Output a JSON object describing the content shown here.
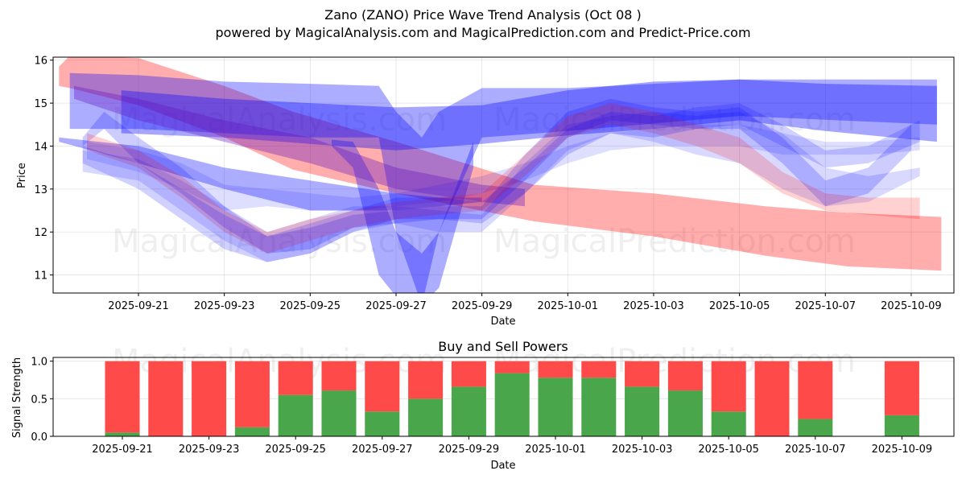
{
  "title": "Zano (ZANO) Price Wave Trend Analysis (Oct 08 )",
  "subtitle": "powered by MagicalAnalysis.com and MagicalPrediction.com and Predict-Price.com",
  "watermarks": [
    "MagicalAnalysis.com",
    "MagicalPrediction.com"
  ],
  "chart_data": [
    {
      "type": "area",
      "title": "",
      "xlabel": "Date",
      "ylabel": "Price",
      "ylim": [
        10.58,
        16.07
      ],
      "xlim": [
        "2025-09-19",
        "2025-10-10"
      ],
      "grid": true,
      "yticks": [
        11,
        12,
        13,
        14,
        15,
        16
      ],
      "xticks": [
        "2025-09-21",
        "2025-09-23",
        "2025-09-25",
        "2025-09-27",
        "2025-09-29",
        "2025-10-01",
        "2025-10-03",
        "2025-10-05",
        "2025-10-07",
        "2025-10-09"
      ],
      "x_origin": "2025-09-21",
      "series": [
        {
          "name": "red-band-main",
          "color": "#ff0000",
          "opacity": 0.32,
          "x": [
            -1.85,
            -1.6,
            0,
            2,
            3.6,
            6,
            9.2,
            12,
            14.6,
            16.5,
            18.7
          ],
          "upper": [
            15.85,
            16.1,
            16.05,
            15.4,
            14.8,
            14.1,
            13.1,
            12.9,
            12.6,
            12.45,
            12.35
          ],
          "lower": [
            15.4,
            15.35,
            14.95,
            14.2,
            13.45,
            12.9,
            12.25,
            11.9,
            11.45,
            11.2,
            11.1
          ]
        },
        {
          "name": "blue-band-wide",
          "color": "#0000ff",
          "opacity": 0.32,
          "x": [
            -1.6,
            0,
            2,
            4,
            5.6,
            6,
            6.6,
            7,
            8,
            10,
            14,
            18.6
          ],
          "upper": [
            15.7,
            15.65,
            15.5,
            15.45,
            15.4,
            14.8,
            14.2,
            14.8,
            15.35,
            15.35,
            15.55,
            15.55
          ],
          "lower": [
            14.4,
            14.4,
            14.3,
            14.2,
            14.2,
            12.0,
            10.3,
            12.0,
            14.2,
            14.35,
            14.7,
            14.5
          ]
        },
        {
          "name": "blue-band-deep-v",
          "color": "#0000ff",
          "opacity": 0.32,
          "x": [
            4.5,
            5.0,
            5.6,
            6.0,
            6.6,
            7.0,
            7.8
          ],
          "upper": [
            14.15,
            14.1,
            13.0,
            12.0,
            11.5,
            12.0,
            14.1
          ],
          "lower": [
            14.0,
            13.5,
            11.0,
            10.5,
            10.3,
            10.7,
            13.5
          ]
        },
        {
          "name": "blue-band-top",
          "color": "#0000ff",
          "opacity": 0.35,
          "x": [
            -0.4,
            2,
            6,
            8,
            10,
            12,
            14,
            16,
            18.6
          ],
          "upper": [
            15.3,
            15.1,
            14.9,
            14.95,
            15.3,
            15.5,
            15.55,
            15.45,
            15.4
          ],
          "lower": [
            14.3,
            14.2,
            13.9,
            14.05,
            14.25,
            14.4,
            14.6,
            14.35,
            14.1
          ]
        },
        {
          "name": "purple-band",
          "color": "#6010c0",
          "opacity": 0.35,
          "x": [
            -1.5,
            0,
            2,
            4,
            6,
            8,
            9
          ],
          "upper": [
            15.4,
            15.1,
            14.6,
            14.2,
            13.5,
            13.1,
            13.0
          ],
          "lower": [
            15.1,
            14.6,
            14.1,
            13.6,
            13.0,
            12.7,
            12.6
          ]
        },
        {
          "name": "blue-band-lower-wide",
          "color": "#0000ff",
          "opacity": 0.32,
          "x": [
            -1.85,
            0,
            2,
            4,
            6,
            7,
            8
          ],
          "upper": [
            14.2,
            14.0,
            13.5,
            13.2,
            12.9,
            12.8,
            12.8
          ],
          "lower": [
            14.1,
            13.6,
            13.0,
            12.5,
            12.5,
            12.6,
            12.7
          ]
        },
        {
          "name": "blue-wave-1",
          "color": "#0000ff",
          "opacity": 0.2,
          "x": [
            -1.3,
            -0.8,
            0,
            1,
            2,
            3,
            4,
            5,
            6,
            7,
            8,
            9,
            10,
            11,
            12,
            13,
            14,
            15,
            16,
            17,
            18
          ],
          "upper": [
            14.2,
            14.8,
            14.2,
            13.5,
            12.6,
            11.9,
            12.1,
            12.4,
            12.5,
            12.6,
            12.6,
            13.8,
            14.8,
            15.1,
            14.9,
            14.8,
            14.9,
            14.2,
            13.2,
            13.5,
            14.5
          ],
          "lower": [
            14.0,
            14.4,
            13.6,
            12.9,
            12.1,
            11.5,
            11.6,
            12.1,
            12.2,
            12.3,
            12.3,
            13.2,
            14.2,
            14.6,
            14.5,
            14.4,
            14.4,
            13.6,
            12.6,
            12.9,
            13.9
          ]
        },
        {
          "name": "blue-wave-2",
          "color": "#0000ff",
          "opacity": 0.15,
          "x": [
            -1.3,
            0,
            1,
            2,
            3,
            4,
            5,
            6,
            7,
            8,
            9,
            10,
            11,
            12,
            13,
            14,
            15,
            16,
            17,
            18.2
          ],
          "upper": [
            13.9,
            13.7,
            13.2,
            12.6,
            12.0,
            12.3,
            12.6,
            12.6,
            12.5,
            12.4,
            13.6,
            14.5,
            14.7,
            14.8,
            14.7,
            14.8,
            14.3,
            13.5,
            13.3,
            13.5
          ],
          "lower": [
            13.4,
            13.2,
            12.5,
            11.8,
            11.3,
            11.5,
            12.0,
            12.2,
            12.0,
            12.0,
            12.9,
            13.9,
            14.3,
            14.1,
            13.8,
            13.6,
            13.0,
            12.6,
            12.7,
            13.3
          ]
        },
        {
          "name": "blue-wave-3",
          "color": "#0000ff",
          "opacity": 0.13,
          "x": [
            -1.2,
            0,
            1,
            2,
            3,
            4,
            5,
            6,
            7,
            8,
            9,
            10,
            11,
            12,
            13,
            14,
            15,
            16,
            17,
            18.2
          ],
          "upper": [
            14.1,
            13.9,
            13.6,
            13.1,
            13.0,
            12.9,
            12.8,
            12.9,
            13.1,
            13.3,
            13.6,
            14.0,
            14.3,
            14.4,
            14.5,
            14.5,
            14.3,
            14.1,
            14.1,
            14.2
          ],
          "lower": [
            13.7,
            13.4,
            13.0,
            12.5,
            12.6,
            12.5,
            12.5,
            12.6,
            12.7,
            12.9,
            13.2,
            13.6,
            13.9,
            14.0,
            14.0,
            14.0,
            13.8,
            13.8,
            13.8,
            13.9
          ]
        },
        {
          "name": "red-wave-1",
          "color": "#ff0000",
          "opacity": 0.18,
          "x": [
            -1.2,
            0,
            1,
            2,
            3,
            4,
            5,
            6,
            7,
            8,
            9,
            10,
            11,
            12,
            13,
            14,
            15,
            16,
            17,
            18.2
          ],
          "upper": [
            14.3,
            13.9,
            13.3,
            12.5,
            12.0,
            12.3,
            12.5,
            12.7,
            12.8,
            12.9,
            13.8,
            14.7,
            15.0,
            14.8,
            14.5,
            14.2,
            13.4,
            12.9,
            12.8,
            12.8
          ],
          "lower": [
            13.9,
            13.5,
            12.8,
            12.0,
            11.5,
            11.8,
            12.1,
            12.3,
            12.4,
            12.5,
            13.3,
            14.2,
            14.5,
            14.3,
            14.0,
            13.6,
            12.9,
            12.5,
            12.4,
            12.3
          ]
        },
        {
          "name": "blue-wave-4",
          "color": "#0000ff",
          "opacity": 0.18,
          "x": [
            -1.3,
            0,
            1,
            2,
            3,
            4,
            5,
            6,
            7,
            8,
            9,
            10,
            11,
            12,
            13,
            14,
            15,
            16,
            17,
            18.2
          ],
          "upper": [
            14.0,
            13.6,
            13.0,
            12.4,
            11.9,
            12.2,
            12.5,
            12.8,
            12.8,
            12.7,
            13.5,
            14.4,
            14.8,
            14.7,
            14.9,
            15.0,
            14.5,
            13.9,
            14.0,
            14.6
          ],
          "lower": [
            13.6,
            13.0,
            12.3,
            11.6,
            11.3,
            11.5,
            12.0,
            12.3,
            12.3,
            12.2,
            12.9,
            13.8,
            14.3,
            14.2,
            14.4,
            14.5,
            14.0,
            13.5,
            13.6,
            14.1
          ]
        }
      ]
    },
    {
      "type": "bar",
      "title": "Buy and Sell Powers",
      "xlabel": "Date",
      "ylabel": "Signal Strength",
      "ylim": [
        0,
        1.05
      ],
      "yticks": [
        0.0,
        0.5,
        1.0
      ],
      "ytick_labels": [
        "0.0",
        "0.5",
        "1.0"
      ],
      "xticks": [
        "2025-09-21",
        "2025-09-23",
        "2025-09-25",
        "2025-09-27",
        "2025-09-29",
        "2025-10-01",
        "2025-10-03",
        "2025-10-05",
        "2025-10-07",
        "2025-10-09"
      ],
      "x_origin": "2025-09-21",
      "series": [
        {
          "name": "Buy",
          "color": "#4aa64a"
        },
        {
          "name": "Sell",
          "color": "#ff4a4a"
        }
      ],
      "categories": [
        "2025-09-21",
        "2025-09-22",
        "2025-09-23",
        "2025-09-24",
        "2025-09-25",
        "2025-09-26",
        "2025-09-27",
        "2025-09-28",
        "2025-09-29",
        "2025-09-30",
        "2025-10-01",
        "2025-10-02",
        "2025-10-03",
        "2025-10-04",
        "2025-10-05",
        "2025-10-06",
        "2025-10-07",
        "2025-10-09"
      ],
      "day_offsets": [
        0,
        1,
        2,
        3,
        4,
        5,
        6,
        7,
        8,
        9,
        10,
        11,
        12,
        13,
        14,
        15,
        16,
        18
      ],
      "buy": [
        0.05,
        0,
        0,
        0.12,
        0.55,
        0.61,
        0.33,
        0.5,
        0.66,
        0.84,
        0.78,
        0.78,
        0.66,
        0.61,
        0.33,
        0,
        0.23,
        0.28
      ],
      "sell": [
        0.95,
        1,
        1,
        0.88,
        0.45,
        0.39,
        0.67,
        0.5,
        0.34,
        0.16,
        0.22,
        0.22,
        0.34,
        0.39,
        0.67,
        1,
        0.77,
        0.72
      ]
    }
  ]
}
